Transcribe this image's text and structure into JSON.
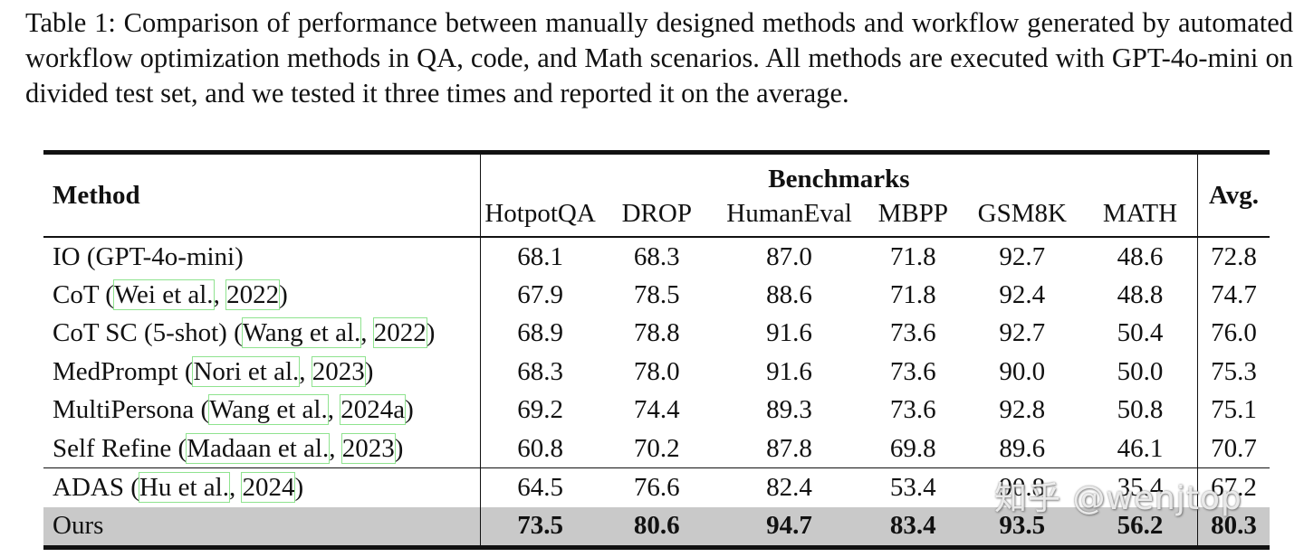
{
  "caption": "Table 1: Comparison of performance between manually designed methods and workflow generated by automated workflow optimization methods in QA, code, and Math scenarios. All methods are executed with GPT-4o-mini on divided test set, and we tested it three times and reported it on the average.",
  "table": {
    "method_header": "Method",
    "group_header": "Benchmarks",
    "avg_header": "Avg.",
    "columns": [
      "HotpotQA",
      "DROP",
      "HumanEval",
      "MBPP",
      "GSM8K",
      "MATH"
    ],
    "rows": [
      {
        "name": "IO (GPT-4o-mini)",
        "cite_author": "",
        "cite_year": "",
        "values": [
          "68.1",
          "68.3",
          "87.0",
          "71.8",
          "92.7",
          "48.6"
        ],
        "avg": "72.8"
      },
      {
        "name": "CoT",
        "cite_author": "Wei et al.",
        "cite_year": "2022",
        "values": [
          "67.9",
          "78.5",
          "88.6",
          "71.8",
          "92.4",
          "48.8"
        ],
        "avg": "74.7"
      },
      {
        "name": "CoT SC (5-shot)",
        "cite_author": "Wang et al.",
        "cite_year": "2022",
        "values": [
          "68.9",
          "78.8",
          "91.6",
          "73.6",
          "92.7",
          "50.4"
        ],
        "avg": "76.0"
      },
      {
        "name": "MedPrompt",
        "cite_author": "Nori et al.",
        "cite_year": "2023",
        "values": [
          "68.3",
          "78.0",
          "91.6",
          "73.6",
          "90.0",
          "50.0"
        ],
        "avg": "75.3"
      },
      {
        "name": "MultiPersona",
        "cite_author": "Wang et al.",
        "cite_year": "2024a",
        "values": [
          "69.2",
          "74.4",
          "89.3",
          "73.6",
          "92.8",
          "50.8"
        ],
        "avg": "75.1"
      },
      {
        "name": "Self Refine",
        "cite_author": "Madaan et al.",
        "cite_year": "2023",
        "values": [
          "60.8",
          "70.2",
          "87.8",
          "69.8",
          "89.6",
          "46.1"
        ],
        "avg": "70.7"
      },
      {
        "name": "ADAS",
        "cite_author": "Hu et al.",
        "cite_year": "2024",
        "values": [
          "64.5",
          "76.6",
          "82.4",
          "53.4",
          "90.8",
          "35.4"
        ],
        "avg": "67.2"
      },
      {
        "name": "Ours",
        "cite_author": "",
        "cite_year": "",
        "values": [
          "73.5",
          "80.6",
          "94.7",
          "83.4",
          "93.5",
          "56.2"
        ],
        "avg": "80.3"
      }
    ]
  },
  "watermark": "知乎 @wenjtop"
}
